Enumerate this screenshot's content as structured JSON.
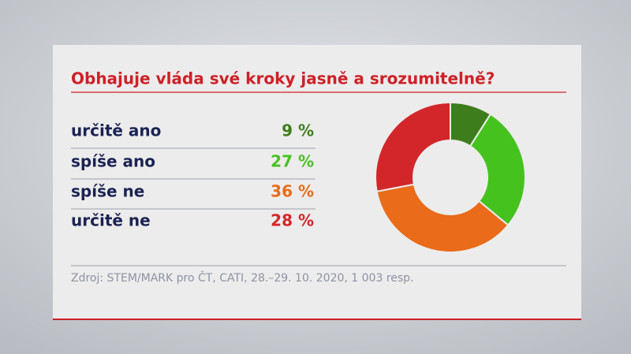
{
  "chart_data": {
    "type": "pie",
    "donut": true,
    "title": "Obhajuje vláda své kroky jasně a srozumitelně?",
    "categories": [
      "určitě ano",
      "spíše ano",
      "spíše ne",
      "určitě ne"
    ],
    "values": [
      9,
      27,
      36,
      28
    ],
    "value_labels": [
      "9 %",
      "27 %",
      "36 %",
      "28 %"
    ],
    "colors": [
      "#3e7d1c",
      "#46c21f",
      "#ea6b19",
      "#d3262a"
    ],
    "source": "Zdroj: STEM/MARK pro ČT, CATI, 28.–29. 10. 2020, 1 003 resp."
  }
}
